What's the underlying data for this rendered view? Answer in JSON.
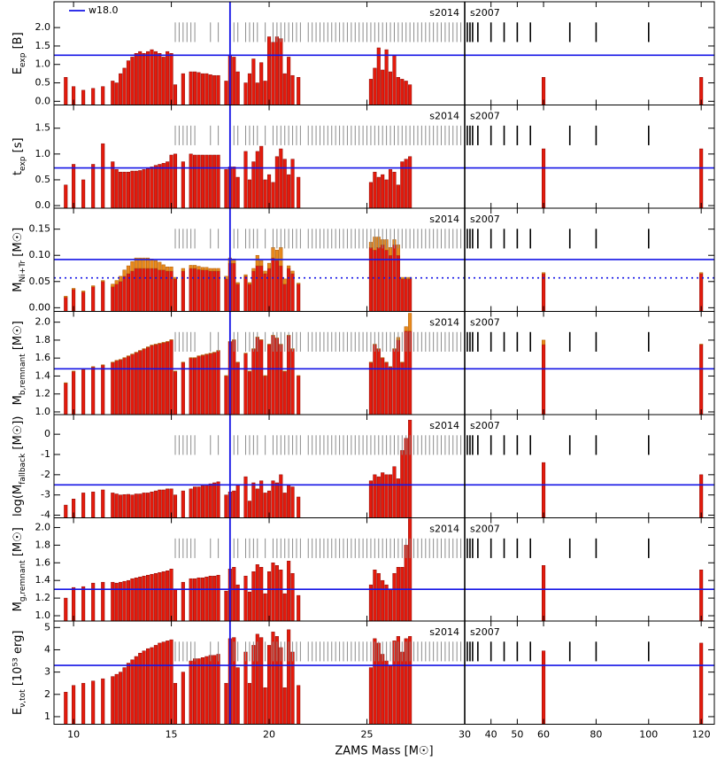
{
  "chart_data": {
    "type": "bar",
    "xlabel": "ZAMS Mass [M☉]",
    "xlim": [
      9,
      125
    ],
    "divider": 30,
    "xticks": [
      10,
      15,
      20,
      25,
      30,
      40,
      50,
      60,
      80,
      100,
      120
    ],
    "marker_line": 18,
    "legend": {
      "name": "w18.0",
      "color": "#1414e6",
      "corner": "upper left"
    },
    "s2014": {
      "label": "s2014",
      "color": "#8c8c8c",
      "masses": [
        15.2,
        15.4,
        15.6,
        15.8,
        16,
        16.2,
        17,
        17.4,
        18.2,
        18.4,
        18.8,
        19,
        19.2,
        19.4,
        19.8,
        20.2,
        20.4,
        20.6,
        20.8,
        21,
        21.2,
        21.4,
        21.6,
        22,
        22.2,
        22.4,
        22.6,
        22.8,
        23,
        23.2,
        23.4,
        23.6,
        23.8,
        24,
        24.2,
        24.4,
        24.6,
        24.8,
        25,
        25.2,
        25.4,
        25.6,
        25.8,
        26,
        26.2,
        26.4,
        26.6,
        26.8,
        27,
        27.2,
        27.4,
        27.6,
        27.8,
        28,
        28.2,
        28.4,
        28.6,
        28.8,
        29,
        29.2,
        29.4,
        29.6,
        29.8
      ]
    },
    "s2007": {
      "label": "s2007",
      "color": "#000000",
      "masses": [
        31,
        32,
        33,
        35,
        40,
        45,
        50,
        55,
        70,
        80,
        100
      ]
    },
    "x": [
      9.6,
      10,
      10.5,
      11,
      11.5,
      12,
      12.2,
      12.4,
      12.6,
      12.8,
      13,
      13.2,
      13.4,
      13.6,
      13.8,
      14,
      14.2,
      14.4,
      14.6,
      14.8,
      15,
      15.2,
      15.6,
      16,
      16.2,
      16.4,
      16.6,
      16.8,
      17,
      17.2,
      17.4,
      17.8,
      18,
      18.2,
      18.4,
      18.8,
      19,
      19.2,
      19.4,
      19.6,
      19.8,
      20,
      20.2,
      20.4,
      20.6,
      20.8,
      21,
      21.2,
      21.5,
      25.2,
      25.4,
      25.6,
      25.8,
      26,
      26.2,
      26.4,
      26.6,
      26.8,
      27,
      27.2,
      60,
      120
    ],
    "panels": [
      {
        "ylabel": {
          "main": "E",
          "sub": "exp",
          "rest": " [B]"
        },
        "ylim": [
          -0.1,
          2.7
        ],
        "yticks": [
          {
            "value": 0,
            "label": "0.0"
          },
          {
            "value": 0.5,
            "label": "0.5"
          },
          {
            "value": 1,
            "label": "1.0"
          },
          {
            "value": 1.5,
            "label": "1.5"
          },
          {
            "value": 2,
            "label": "2.0"
          }
        ],
        "hlines": [
          {
            "value": 1.25,
            "dotted": false
          }
        ],
        "series": [
          {
            "color": "#e41a0c",
            "values": [
              0.65,
              0.4,
              0.3,
              0.35,
              0.4,
              0.55,
              0.5,
              0.75,
              0.9,
              1.1,
              1.2,
              1.3,
              1.35,
              1.3,
              1.35,
              1.4,
              1.35,
              1.3,
              1.2,
              1.35,
              1.3,
              0.45,
              0.75,
              0.8,
              0.8,
              0.78,
              0.75,
              0.75,
              0.72,
              0.7,
              0.7,
              0.55,
              1.25,
              1.2,
              0.8,
              0.5,
              0.75,
              1.15,
              0.5,
              1.05,
              0.55,
              1.75,
              1.6,
              1.75,
              1.7,
              0.75,
              1.2,
              0.7,
              0.65,
              0.6,
              0.9,
              1.45,
              0.85,
              1.4,
              0.8,
              1.25,
              0.65,
              0.6,
              0.55,
              0.45,
              0.65,
              0.65
            ]
          }
        ]
      },
      {
        "ylabel": {
          "main": "t",
          "sub": "exp",
          "rest": " [s]"
        },
        "ylim": [
          -0.05,
          1.95
        ],
        "yticks": [
          {
            "value": 0,
            "label": "0.0"
          },
          {
            "value": 0.5,
            "label": "0.5"
          },
          {
            "value": 1,
            "label": "1.0"
          },
          {
            "value": 1.5,
            "label": "1.5"
          }
        ],
        "hlines": [
          {
            "value": 0.73,
            "dotted": false
          }
        ],
        "series": [
          {
            "color": "#e41a0c",
            "values": [
              0.4,
              0.8,
              0.5,
              0.8,
              1.2,
              0.85,
              0.7,
              0.65,
              0.65,
              0.65,
              0.67,
              0.67,
              0.68,
              0.7,
              0.72,
              0.75,
              0.78,
              0.8,
              0.82,
              0.85,
              0.98,
              1.0,
              0.85,
              1.0,
              0.98,
              0.98,
              0.98,
              0.98,
              0.98,
              0.98,
              0.98,
              0.7,
              0.75,
              0.75,
              0.55,
              1.05,
              0.5,
              0.85,
              1.05,
              1.15,
              0.5,
              0.6,
              0.45,
              0.95,
              1.1,
              0.9,
              0.6,
              0.9,
              0.55,
              0.45,
              0.65,
              0.55,
              0.6,
              0.5,
              0.7,
              0.65,
              0.4,
              0.85,
              0.9,
              0.95,
              1.1,
              1.1
            ]
          }
        ]
      },
      {
        "ylabel": {
          "main": "M",
          "sub": "Ni+Tr",
          "rest": " [M☉]"
        },
        "ylim": [
          -0.007,
          0.19
        ],
        "yticks": [
          {
            "value": 0,
            "label": "0.00"
          },
          {
            "value": 0.05,
            "label": "0.05"
          },
          {
            "value": 0.1,
            "label": "0.10"
          },
          {
            "value": 0.15,
            "label": "0.15"
          }
        ],
        "hlines": [
          {
            "value": 0.092,
            "dotted": false
          },
          {
            "value": 0.057,
            "dotted": true
          }
        ],
        "series": [
          {
            "color": "#e41a0c",
            "values": [
              0.02,
              0.035,
              0.03,
              0.04,
              0.05,
              0.04,
              0.045,
              0.05,
              0.06,
              0.065,
              0.07,
              0.075,
              0.075,
              0.075,
              0.075,
              0.075,
              0.075,
              0.072,
              0.072,
              0.07,
              0.07,
              0.055,
              0.07,
              0.075,
              0.075,
              0.073,
              0.072,
              0.072,
              0.07,
              0.07,
              0.07,
              0.055,
              0.085,
              0.085,
              0.045,
              0.06,
              0.045,
              0.07,
              0.08,
              0.08,
              0.065,
              0.075,
              0.095,
              0.09,
              0.08,
              0.045,
              0.075,
              0.065,
              0.045,
              0.115,
              0.11,
              0.115,
              0.12,
              0.11,
              0.1,
              0.12,
              0.1,
              0.055,
              0.055,
              0.055,
              0.065,
              0.065
            ]
          },
          {
            "color": "#e8891c",
            "values": [
              0.002,
              0.002,
              0.002,
              0.002,
              0.002,
              0.005,
              0.007,
              0.01,
              0.012,
              0.015,
              0.018,
              0.02,
              0.02,
              0.02,
              0.02,
              0.018,
              0.015,
              0.015,
              0.01,
              0.008,
              0.008,
              0.003,
              0.005,
              0.006,
              0.006,
              0.006,
              0.005,
              0.005,
              0.005,
              0.005,
              0.005,
              0.005,
              0.01,
              0.008,
              0.003,
              0.003,
              0.003,
              0.005,
              0.02,
              0.01,
              0.005,
              0.01,
              0.02,
              0.02,
              0.035,
              0.01,
              0.005,
              0.005,
              0.002,
              0.01,
              0.025,
              0.02,
              0.01,
              0.02,
              0.015,
              0.01,
              0.02,
              0.003,
              0.003,
              0.003,
              0.002,
              0.002
            ]
          }
        ]
      },
      {
        "ylabel": {
          "main": "M",
          "sub": "b,remnant",
          "rest": " [M☉]"
        },
        "ylim": [
          0.97,
          2.12
        ],
        "yticks": [
          {
            "value": 1,
            "label": "1.0"
          },
          {
            "value": 1.2,
            "label": "1.2"
          },
          {
            "value": 1.4,
            "label": "1.4"
          },
          {
            "value": 1.6,
            "label": "1.6"
          },
          {
            "value": 1.8,
            "label": "1.8"
          },
          {
            "value": 2,
            "label": "2.0"
          }
        ],
        "hlines": [
          {
            "value": 1.48,
            "dotted": false
          }
        ],
        "series": [
          {
            "color": "#e41a0c",
            "values": [
              1.32,
              1.45,
              1.47,
              1.5,
              1.52,
              1.55,
              1.57,
              1.58,
              1.6,
              1.62,
              1.64,
              1.66,
              1.68,
              1.7,
              1.72,
              1.74,
              1.75,
              1.76,
              1.77,
              1.78,
              1.8,
              1.45,
              1.55,
              1.6,
              1.6,
              1.62,
              1.63,
              1.64,
              1.65,
              1.66,
              1.68,
              1.4,
              1.78,
              1.8,
              1.55,
              1.65,
              1.45,
              1.7,
              1.83,
              1.8,
              1.4,
              1.75,
              1.85,
              1.82,
              1.75,
              1.45,
              1.85,
              1.7,
              1.4,
              1.55,
              1.75,
              1.7,
              1.6,
              1.55,
              1.5,
              1.7,
              1.8,
              1.55,
              1.9,
              1.9,
              1.75,
              1.75
            ]
          },
          {
            "color": "#e8891c",
            "values": [
              0.005,
              0.005,
              0.005,
              0.005,
              0.005,
              0.005,
              0.005,
              0.005,
              0.005,
              0.005,
              0.005,
              0.005,
              0.005,
              0.005,
              0.005,
              0.005,
              0.005,
              0.005,
              0.005,
              0.005,
              0.005,
              0.005,
              0.005,
              0.005,
              0.005,
              0.005,
              0.005,
              0.005,
              0.005,
              0.005,
              0.005,
              0.005,
              0.005,
              0.005,
              0.005,
              0.005,
              0.005,
              0.005,
              0.005,
              0.005,
              0.005,
              0.005,
              0.005,
              0.005,
              0.005,
              0.005,
              0.005,
              0.005,
              0.005,
              0.005,
              0.005,
              0.005,
              0.005,
              0.005,
              0.005,
              0.005,
              0.03,
              0.005,
              0.05,
              0.2,
              0.05,
              0.005
            ]
          }
        ]
      },
      {
        "ylabel": {
          "main": "log(M",
          "sub": "fallback",
          "rest": " [M☉])"
        },
        "ylim": [
          -4.13,
          0.97
        ],
        "yticks": [
          -4,
          -3,
          -2,
          -1,
          0
        ],
        "hlines": [
          {
            "value": -2.5,
            "dotted": false
          }
        ],
        "series": [
          {
            "color": "#e41a0c",
            "values": [
              -3.5,
              -3.2,
              -2.9,
              -2.85,
              -2.75,
              -2.9,
              -2.95,
              -3,
              -2.98,
              -2.97,
              -3,
              -2.95,
              -2.95,
              -2.9,
              -2.9,
              -2.85,
              -2.8,
              -2.75,
              -2.75,
              -2.7,
              -2.7,
              -3.0,
              -2.8,
              -2.7,
              -2.6,
              -2.6,
              -2.55,
              -2.5,
              -2.45,
              -2.4,
              -2.35,
              -3.0,
              -2.85,
              -2.8,
              -2.5,
              -2.1,
              -3.3,
              -2.4,
              -2.7,
              -2.3,
              -2.9,
              -2.8,
              -2.3,
              -2.4,
              -2.0,
              -2.9,
              -2.5,
              -2.6,
              -3.1,
              -2.3,
              -2.0,
              -2.1,
              -1.9,
              -2.0,
              -2.0,
              -1.6,
              -2.2,
              -0.8,
              -0.2,
              0.7,
              -1.4,
              -2.0
            ]
          }
        ]
      },
      {
        "ylabel": {
          "main": "M",
          "sub": "g,remnant",
          "rest": " [M☉]"
        },
        "ylim": [
          0.94,
          2.11
        ],
        "yticks": [
          {
            "value": 1,
            "label": "1.0"
          },
          {
            "value": 1.2,
            "label": "1.2"
          },
          {
            "value": 1.4,
            "label": "1.4"
          },
          {
            "value": 1.6,
            "label": "1.6"
          },
          {
            "value": 1.8,
            "label": "1.8"
          },
          {
            "value": 2,
            "label": "2.0"
          }
        ],
        "hlines": [
          {
            "value": 1.3,
            "dotted": false
          }
        ],
        "series": [
          {
            "color": "#e41a0c",
            "values": [
              1.2,
              1.32,
              1.33,
              1.37,
              1.38,
              1.38,
              1.37,
              1.38,
              1.39,
              1.4,
              1.42,
              1.43,
              1.44,
              1.45,
              1.46,
              1.47,
              1.48,
              1.49,
              1.5,
              1.51,
              1.53,
              1.3,
              1.38,
              1.42,
              1.42,
              1.43,
              1.43,
              1.44,
              1.45,
              1.45,
              1.46,
              1.28,
              1.53,
              1.55,
              1.35,
              1.45,
              1.27,
              1.5,
              1.58,
              1.55,
              1.25,
              1.5,
              1.6,
              1.57,
              1.52,
              1.25,
              1.62,
              1.48,
              1.23,
              1.35,
              1.52,
              1.48,
              1.4,
              1.35,
              1.3,
              1.48,
              1.55,
              1.55,
              1.8,
              2.1,
              1.57,
              1.52
            ]
          }
        ]
      },
      {
        "ylabel": {
          "main": "E",
          "sub": "ν,tot",
          "rest": " [10⁵³ erg]"
        },
        "ylim": [
          0.66,
          5.29
        ],
        "yticks": [
          1,
          2,
          3,
          4,
          5
        ],
        "hlines": [
          {
            "value": 3.3,
            "dotted": false
          }
        ],
        "series": [
          {
            "color": "#e41a0c",
            "values": [
              2.1,
              2.4,
              2.5,
              2.6,
              2.7,
              2.8,
              2.9,
              3.0,
              3.2,
              3.4,
              3.55,
              3.7,
              3.85,
              3.95,
              4.05,
              4.1,
              4.2,
              4.3,
              4.35,
              4.4,
              4.45,
              2.5,
              3.0,
              3.5,
              3.6,
              3.6,
              3.65,
              3.7,
              3.75,
              3.75,
              3.8,
              2.5,
              4.5,
              4.55,
              3.2,
              3.9,
              2.5,
              4.2,
              4.7,
              4.55,
              2.3,
              4.2,
              4.8,
              4.6,
              4.1,
              2.3,
              4.9,
              3.9,
              2.4,
              3.2,
              4.5,
              4.3,
              3.8,
              3.5,
              3.3,
              4.4,
              4.6,
              3.9,
              4.5,
              4.6,
              3.95,
              4.3
            ]
          }
        ]
      }
    ]
  }
}
